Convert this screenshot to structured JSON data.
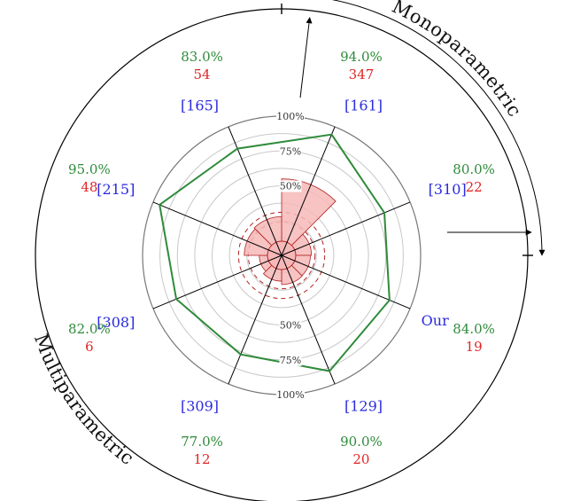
{
  "chart_data": {
    "type": "radar",
    "title": "",
    "radial_ticks": [
      "50%",
      "75%",
      "100%"
    ],
    "axes": [
      {
        "label": "[161]",
        "accuracy": 94.0,
        "accuracy_label": "94.0%",
        "count": 347
      },
      {
        "label": "[310]",
        "accuracy": 80.0,
        "accuracy_label": "80.0%",
        "count": 22
      },
      {
        "label": "Our",
        "accuracy": 84.0,
        "accuracy_label": "84.0%",
        "count": 19
      },
      {
        "label": "[129]",
        "accuracy": 90.0,
        "accuracy_label": "90.0%",
        "count": 20
      },
      {
        "label": "[309]",
        "accuracy": 77.0,
        "accuracy_label": "77.0%",
        "count": 12
      },
      {
        "label": "[308]",
        "accuracy": 82.0,
        "accuracy_label": "82.0%",
        "count": 6
      },
      {
        "label": "[215]",
        "accuracy": 95.0,
        "accuracy_label": "95.0%",
        "count": 48
      },
      {
        "label": "[165]",
        "accuracy": 83.0,
        "accuracy_label": "83.0%",
        "count": 54
      }
    ],
    "groups": [
      {
        "name": "Monoparametric",
        "members": [
          "[161]",
          "[310]"
        ]
      },
      {
        "name": "Multiparametric",
        "members": [
          "Our",
          "[129]",
          "[309]",
          "[308]",
          "[215]",
          "[165]"
        ]
      }
    ],
    "colors": {
      "accuracy_line": "#2e8b3a",
      "count_fill": "#f6b8b8",
      "count_stroke": "#b22222",
      "reference_label": "#2a2ae0",
      "count_label": "#e02525"
    },
    "accuracy_range": [
      0,
      100
    ],
    "count_max": 347
  }
}
